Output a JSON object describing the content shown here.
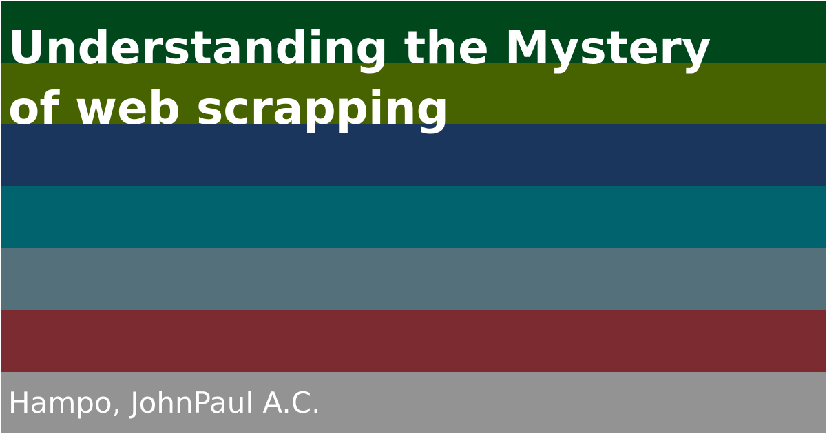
{
  "cover": {
    "title_line_1": "Understanding the Mystery",
    "title_line_2": "of web scrapping",
    "author": "Hampo, JohnPaul A.C."
  },
  "stripes": [
    {
      "name": "stripe-dark-green",
      "color": "#00471b"
    },
    {
      "name": "stripe-olive-green",
      "color": "#476300"
    },
    {
      "name": "stripe-navy",
      "color": "#1b365c"
    },
    {
      "name": "stripe-teal",
      "color": "#00636e"
    },
    {
      "name": "stripe-slate",
      "color": "#53707b"
    },
    {
      "name": "stripe-maroon",
      "color": "#7c2b30"
    },
    {
      "name": "stripe-gray",
      "color": "#939393"
    }
  ]
}
